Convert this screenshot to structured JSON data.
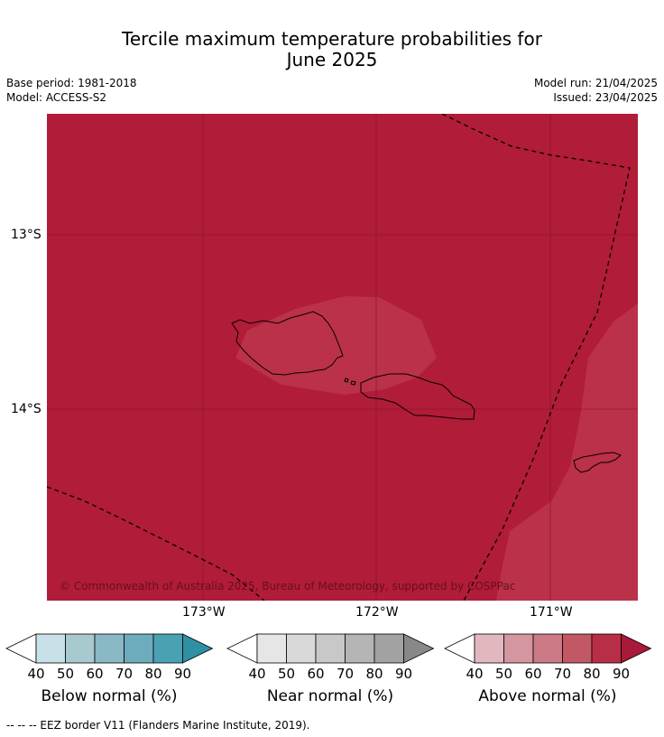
{
  "title_line1": "Tercile maximum temperature probabilities for",
  "title_line2": "June 2025",
  "base_period": "Base period: 1981-2018",
  "model": "Model: ACCESS-S2",
  "model_run": "Model run: 21/04/2025",
  "issued": "Issued: 23/04/2025",
  "copyright": "© Commonwealth of Australia 2025, Bureau of Meteorology, supported by COSPPac",
  "lat_labels": [
    "13°S",
    "14°S"
  ],
  "lon_labels": [
    "173°W",
    "172°W",
    "171°W"
  ],
  "colorbars": [
    {
      "label": "Below normal (%)",
      "ticks": [
        "40",
        "50",
        "60",
        "70",
        "80",
        "90"
      ],
      "colors": [
        "#ffffff",
        "#c8e0e7",
        "#a9c9d0",
        "#8ab8c5",
        "#6cacbd",
        "#49a1b4",
        "#2f8fa3"
      ]
    },
    {
      "label": "Near normal (%)",
      "ticks": [
        "40",
        "50",
        "60",
        "70",
        "80",
        "90"
      ],
      "colors": [
        "#ffffff",
        "#e6e6e6",
        "#d9d9d9",
        "#c8c8c8",
        "#b5b5b5",
        "#a2a2a2",
        "#888888"
      ]
    },
    {
      "label": "Above normal (%)",
      "ticks": [
        "40",
        "50",
        "60",
        "70",
        "80",
        "90"
      ],
      "colors": [
        "#ffffff",
        "#e2b8bf",
        "#d4969f",
        "#cc7a85",
        "#c35865",
        "#b82e46",
        "#a8193a"
      ]
    }
  ],
  "map_colors": {
    "band_90": "#b11c38",
    "band_80": "#bb3149"
  },
  "footnote": "--  --  -- EEZ border V11 (Flanders Marine Institute, 2019)."
}
